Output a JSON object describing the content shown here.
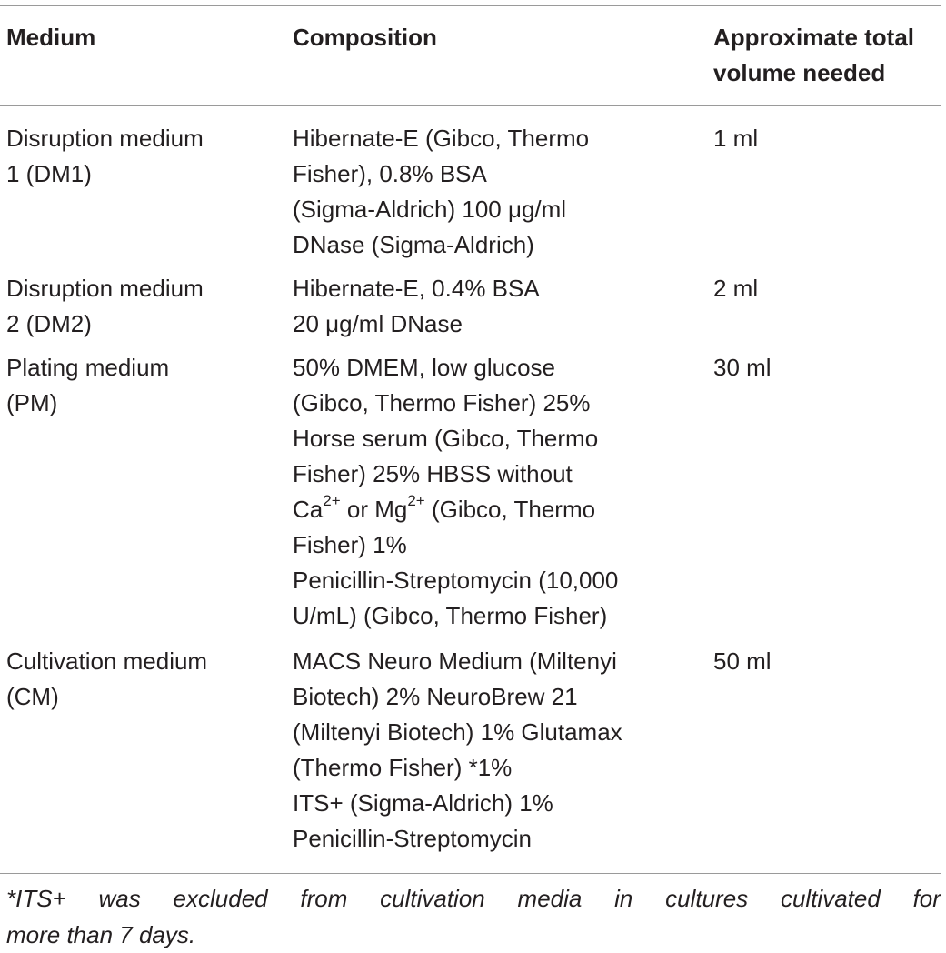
{
  "table": {
    "headers": {
      "medium": "Medium",
      "composition": "Composition",
      "volume_line1": "Approximate total",
      "volume_line2": "volume needed"
    },
    "rows": [
      {
        "medium": [
          "Disruption medium",
          "1 (DM1)"
        ],
        "composition": [
          "Hibernate-E (Gibco, Thermo",
          "Fisher), 0.8% BSA",
          "(Sigma-Aldrich) 100 μg/ml",
          "DNase (Sigma-Aldrich)"
        ],
        "volume": "1 ml"
      },
      {
        "medium": [
          "Disruption medium",
          "2 (DM2)"
        ],
        "composition": [
          "Hibernate-E, 0.4% BSA",
          "20 μg/ml DNase"
        ],
        "volume": "2 ml"
      },
      {
        "medium": [
          "Plating medium",
          "(PM)"
        ],
        "composition": [
          "50% DMEM, low glucose",
          "(Gibco, Thermo Fisher) 25%",
          "Horse serum (Gibco, Thermo",
          "Fisher) 25% HBSS without"
        ],
        "composition_ion_line": {
          "ca": "Ca",
          "ca_sup": "2+",
          "or": " or Mg",
          "mg_sup": "2+",
          "rest": " (Gibco, Thermo"
        },
        "composition_after": [
          "Fisher) 1%",
          "Penicillin-Streptomycin (10,000",
          "U/mL) (Gibco, Thermo Fisher)"
        ],
        "volume": "30 ml"
      },
      {
        "medium": [
          "Cultivation medium",
          "(CM)"
        ],
        "composition": [
          "MACS Neuro Medium (Miltenyi",
          "Biotech) 2% NeuroBrew 21",
          "(Miltenyi Biotech) 1% Glutamax",
          "(Thermo Fisher) *1%",
          "ITS+ (Sigma-Aldrich) 1%",
          "Penicillin-Streptomycin"
        ],
        "volume": "50 ml"
      }
    ],
    "footnote": {
      "line1_words": [
        "*ITS+",
        "was",
        "excluded",
        "from",
        "cultivation",
        "media",
        "in",
        "cultures",
        "cultivated",
        "for"
      ],
      "line2": "more than 7 days."
    }
  }
}
